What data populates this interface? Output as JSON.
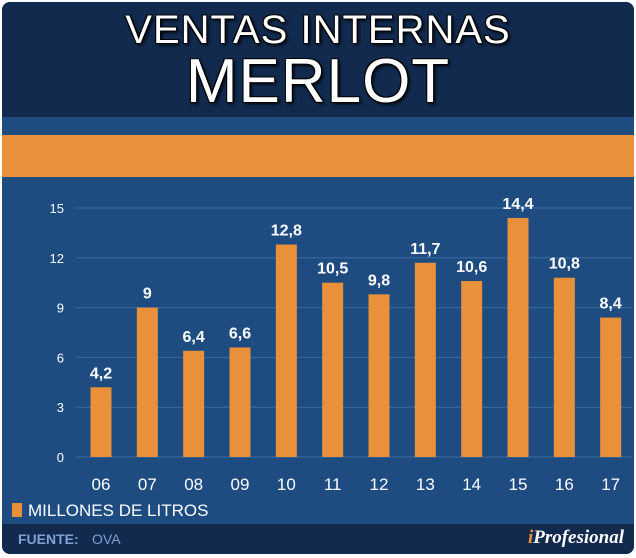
{
  "header": {
    "title_line1": "VENTAS INTERNAS",
    "title_line2": "MERLOT"
  },
  "colors": {
    "background": "#1e4c80",
    "header": "#112a4e",
    "bar": "#e8913a",
    "text": "#ffffff"
  },
  "chart_data": {
    "type": "bar",
    "title": "VENTAS INTERNAS MERLOT",
    "categories": [
      "06",
      "07",
      "08",
      "09",
      "10",
      "11",
      "12",
      "13",
      "14",
      "15",
      "16",
      "17"
    ],
    "values": [
      4.2,
      9,
      6.4,
      6.6,
      12.8,
      10.5,
      9.8,
      11.7,
      10.6,
      14.4,
      10.8,
      8.4
    ],
    "value_labels": [
      "4,2",
      "9",
      "6,4",
      "6,6",
      "12,8",
      "10,5",
      "9,8",
      "11,7",
      "10,6",
      "14,4",
      "10,8",
      "8,4"
    ],
    "y_ticks": [
      0,
      3,
      6,
      9,
      12,
      15
    ],
    "ylim": [
      0,
      15
    ],
    "xlabel": "",
    "ylabel": "",
    "grid": true,
    "legend": {
      "label": "MILLONES DE LITROS",
      "placement": "bottom-left"
    }
  },
  "footer": {
    "source_label": "FUENTE:",
    "source_value": "OVA",
    "brand_prefix": "i",
    "brand_name": "Profesional"
  }
}
